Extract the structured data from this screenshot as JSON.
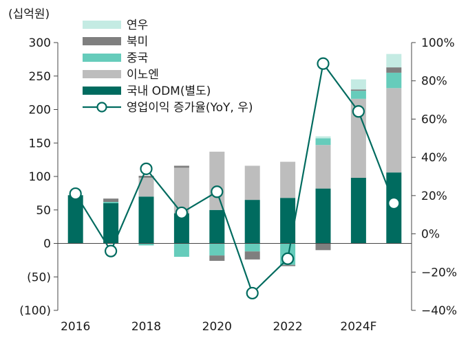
{
  "chart_data": {
    "type": "bar",
    "stacked": true,
    "unit_label": "(십억원)",
    "categories": [
      "2016",
      "2017",
      "2018",
      "2019",
      "2020",
      "2021",
      "2022",
      "2023",
      "2024F",
      "2025F"
    ],
    "x_tick_labels": [
      "2016",
      "",
      "2018",
      "",
      "2020",
      "",
      "2022",
      "",
      "2024F",
      ""
    ],
    "y_left": {
      "min": -100,
      "max": 300,
      "ticks": [
        300,
        250,
        200,
        150,
        100,
        50,
        0,
        -50,
        -100
      ],
      "tick_labels": [
        "300",
        "250",
        "200",
        "150",
        "100",
        "50",
        "0",
        "(50)",
        "(100)"
      ]
    },
    "y_right": {
      "min": -40,
      "max": 100,
      "ticks": [
        100,
        80,
        60,
        40,
        20,
        0,
        -20,
        -40
      ],
      "tick_labels": [
        "100%",
        "80%",
        "60%",
        "40%",
        "20%",
        "0%",
        "−20%",
        "−40%"
      ]
    },
    "series": [
      {
        "name": "국내 ODM(별도)",
        "color": "#006b5f",
        "values": [
          72,
          60,
          70,
          45,
          50,
          65,
          68,
          82,
          98,
          106
        ]
      },
      {
        "name": "이노엔",
        "color": "#bdbdbd",
        "values": [
          0,
          0,
          28,
          68,
          87,
          51,
          54,
          65,
          118,
          126
        ]
      },
      {
        "name": "중국",
        "color": "#66ccbb",
        "values": [
          0,
          2,
          -3,
          -20,
          -18,
          -12,
          -32,
          10,
          12,
          23
        ]
      },
      {
        "name": "북미",
        "color": "#7f7f7f",
        "values": [
          0,
          5,
          3,
          3,
          -8,
          -12,
          -2,
          -10,
          2,
          8
        ]
      },
      {
        "name": "연우",
        "color": "#c4ebe3",
        "values": [
          0,
          0,
          0,
          0,
          0,
          0,
          0,
          3,
          15,
          20
        ]
      }
    ],
    "line": {
      "name": "영업이익 증가율(YoY, 우)",
      "color": "#006b5f",
      "values": [
        21,
        -9,
        34,
        11,
        22,
        -31,
        -13,
        89,
        64,
        16
      ]
    },
    "legend": [
      "연우",
      "북미",
      "중국",
      "이노엔",
      "국내 ODM(별도)",
      "영업이익 증가율(YoY, 우)"
    ],
    "legend_position": "top-left",
    "grid": false
  }
}
